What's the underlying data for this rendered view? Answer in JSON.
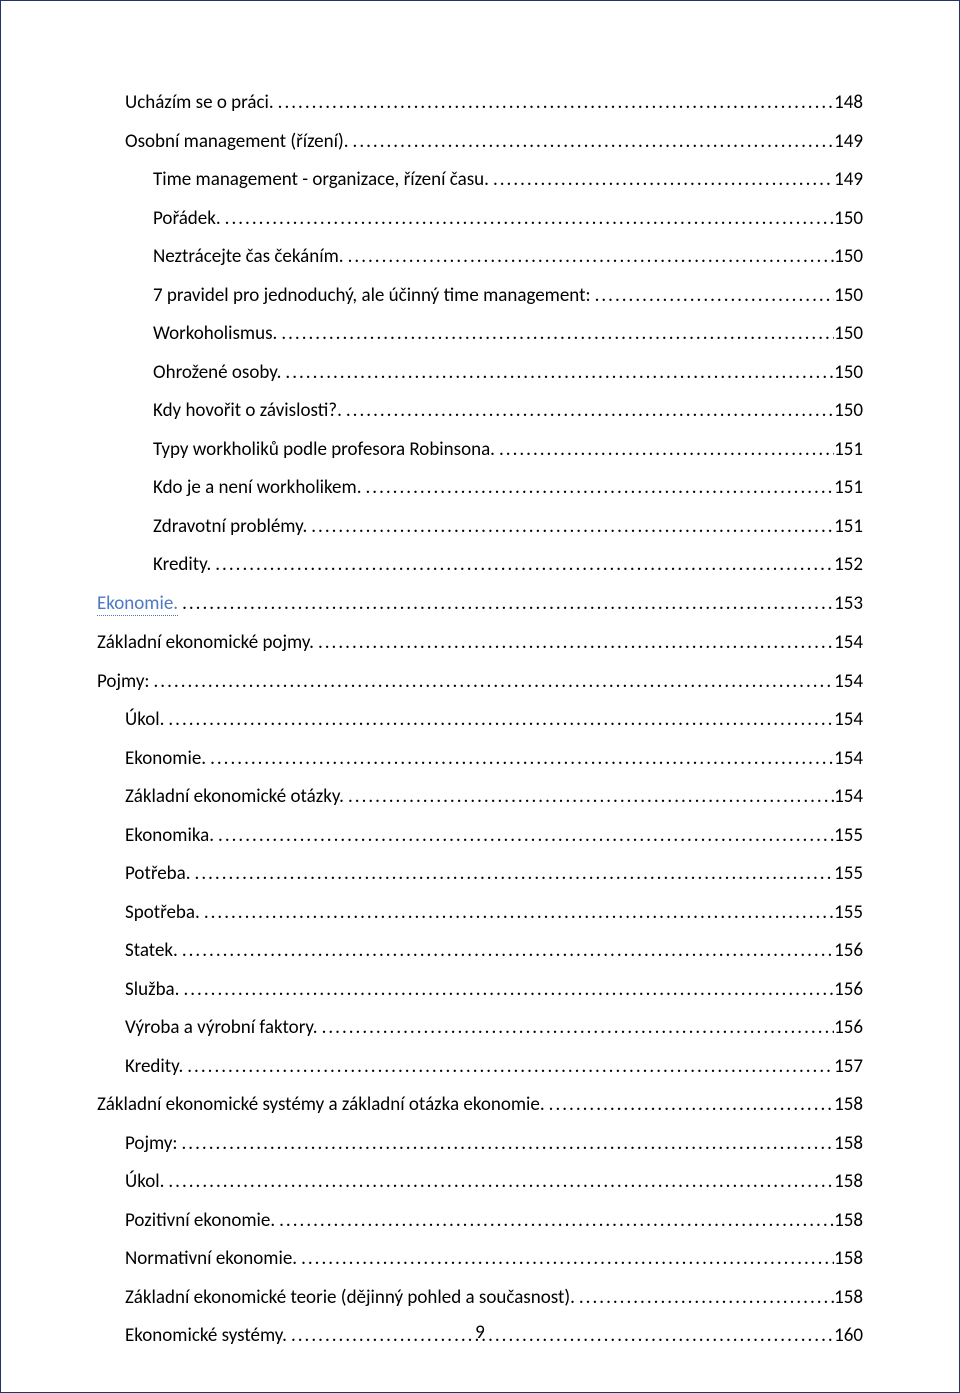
{
  "page_number": "9",
  "colors": {
    "text": "#000000",
    "heading_link": "#4e78c4",
    "border": "#1f3763",
    "background": "#ffffff"
  },
  "font": {
    "family": "Calibri",
    "size_pt": 11
  },
  "toc": [
    {
      "title": "Ucházím se o práci.",
      "page": "148",
      "indent": 1,
      "heading": false
    },
    {
      "title": "Osobní management (řízení).",
      "page": "149",
      "indent": 1,
      "heading": false
    },
    {
      "title": "Time management - organizace, řízení času.",
      "page": "149",
      "indent": 2,
      "heading": false
    },
    {
      "title": "Pořádek.",
      "page": "150",
      "indent": 2,
      "heading": false
    },
    {
      "title": "Neztrácejte čas čekáním.",
      "page": "150",
      "indent": 2,
      "heading": false
    },
    {
      "title": "7 pravidel pro jednoduchý, ale účinný time management:",
      "page": "150",
      "indent": 2,
      "heading": false
    },
    {
      "title": "Workoholismus.",
      "page": "150",
      "indent": 2,
      "heading": false
    },
    {
      "title": "Ohrožené osoby.",
      "page": "150",
      "indent": 2,
      "heading": false
    },
    {
      "title": "Kdy hovořit o závislosti?.",
      "page": "150",
      "indent": 2,
      "heading": false
    },
    {
      "title": "Typy workholiků podle profesora Robinsona.",
      "page": "151",
      "indent": 2,
      "heading": false
    },
    {
      "title": "Kdo je a není workholikem.",
      "page": "151",
      "indent": 2,
      "heading": false
    },
    {
      "title": "Zdravotní problémy.",
      "page": "151",
      "indent": 2,
      "heading": false
    },
    {
      "title": "Kredity.",
      "page": "152",
      "indent": 2,
      "heading": false
    },
    {
      "title": "Ekonomie.",
      "page": "153",
      "indent": 0,
      "heading": true
    },
    {
      "title": "Základní ekonomické pojmy.",
      "page": "154",
      "indent": 0,
      "heading": false
    },
    {
      "title": "Pojmy:",
      "page": "154",
      "indent": 0,
      "heading": false
    },
    {
      "title": "Úkol.",
      "page": "154",
      "indent": 1,
      "heading": false
    },
    {
      "title": "Ekonomie.",
      "page": "154",
      "indent": 1,
      "heading": false
    },
    {
      "title": "Základní ekonomické otázky.",
      "page": "154",
      "indent": 1,
      "heading": false
    },
    {
      "title": "Ekonomika.",
      "page": "155",
      "indent": 1,
      "heading": false
    },
    {
      "title": "Potřeba.",
      "page": "155",
      "indent": 1,
      "heading": false
    },
    {
      "title": "Spotřeba.",
      "page": "155",
      "indent": 1,
      "heading": false
    },
    {
      "title": "Statek.",
      "page": "156",
      "indent": 1,
      "heading": false
    },
    {
      "title": "Služba.",
      "page": "156",
      "indent": 1,
      "heading": false
    },
    {
      "title": "Výroba a výrobní faktory.",
      "page": "156",
      "indent": 1,
      "heading": false
    },
    {
      "title": "Kredity.",
      "page": "157",
      "indent": 1,
      "heading": false
    },
    {
      "title": "Základní ekonomické systémy a základní otázka ekonomie.",
      "page": "158",
      "indent": 0,
      "heading": false
    },
    {
      "title": "Pojmy:",
      "page": "158",
      "indent": 1,
      "heading": false
    },
    {
      "title": "Úkol.",
      "page": "158",
      "indent": 1,
      "heading": false
    },
    {
      "title": "Pozitivní ekonomie.",
      "page": "158",
      "indent": 1,
      "heading": false
    },
    {
      "title": "Normativní ekonomie.",
      "page": "158",
      "indent": 1,
      "heading": false
    },
    {
      "title": "Základní ekonomické teorie (dějinný pohled a současnost).",
      "page": "158",
      "indent": 1,
      "heading": false
    },
    {
      "title": "Ekonomické systémy.",
      "page": "160",
      "indent": 1,
      "heading": false
    }
  ]
}
